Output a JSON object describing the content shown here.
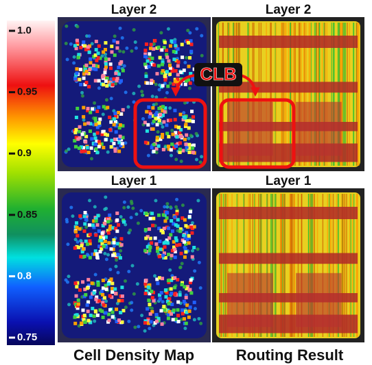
{
  "panels": {
    "top_left_title": "Layer 2",
    "top_right_title": "Layer 2",
    "bottom_left_title": "Layer 1",
    "bottom_right_title": "Layer 1"
  },
  "callout": "CLB",
  "captions": {
    "left": "Cell Density Map",
    "right": "Routing Result"
  },
  "colorbar": {
    "lim": [
      0.75,
      1
    ],
    "ticks": [
      {
        "value": 1,
        "label": "1.0"
      },
      0.95,
      0.9,
      0.85,
      0.8,
      0.75
    ]
  }
}
